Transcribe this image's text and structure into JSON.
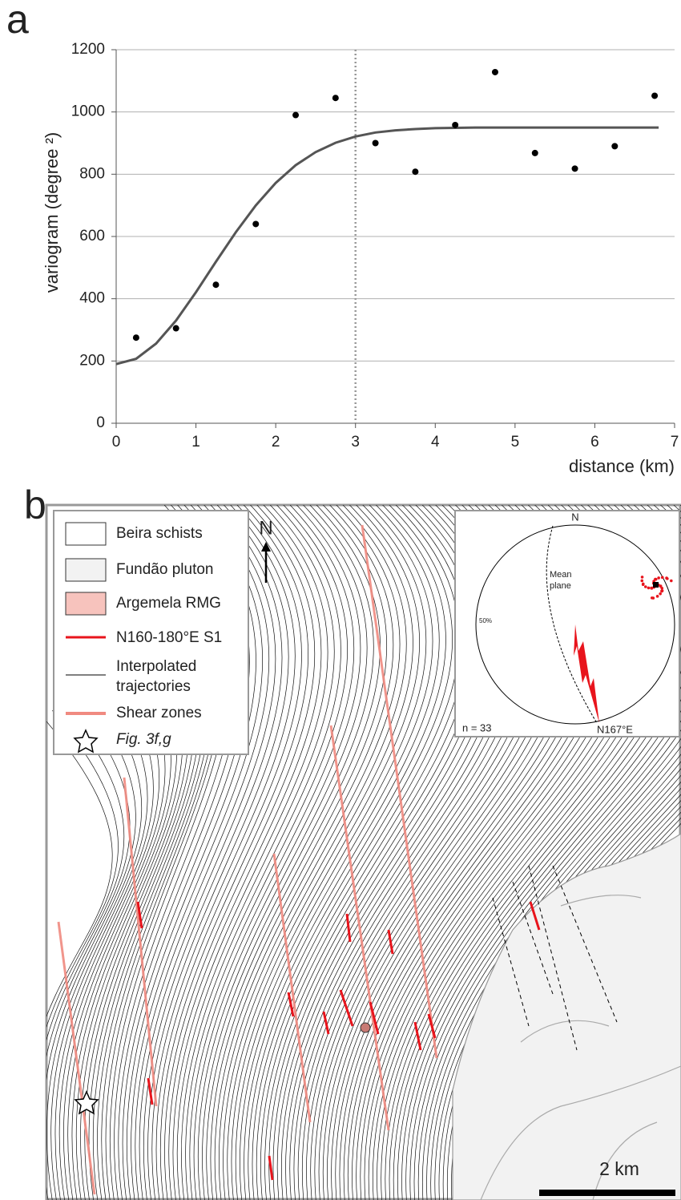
{
  "panel_a_label": "a",
  "chart_data": {
    "type": "scatter",
    "y_label": "variogram (degree ²)",
    "x_label": "distance (km)",
    "xlim": [
      0,
      7
    ],
    "xticks": [
      0,
      1,
      2,
      3,
      4,
      5,
      6,
      7
    ],
    "ylim": [
      0,
      1200
    ],
    "yticks": [
      0,
      200,
      400,
      600,
      800,
      1000,
      1200
    ],
    "grid": true,
    "reference_line_x": 3,
    "points": {
      "color": "#000000",
      "x": [
        0.25,
        0.75,
        1.25,
        1.75,
        2.25,
        2.75,
        3.25,
        3.75,
        4.25,
        4.75,
        5.25,
        5.75,
        6.25,
        6.75
      ],
      "values": [
        275,
        305,
        445,
        640,
        990,
        1045,
        900,
        808,
        958,
        1128,
        868,
        818,
        890,
        1052
      ]
    },
    "fit": {
      "color": "#555555",
      "x": [
        0,
        0.25,
        0.5,
        0.75,
        1,
        1.25,
        1.5,
        1.75,
        2,
        2.25,
        2.5,
        2.75,
        3,
        3.25,
        3.5,
        3.75,
        4,
        4.5,
        5,
        5.5,
        6,
        6.5,
        6.8
      ],
      "values": [
        190,
        207,
        256,
        330,
        421,
        519,
        614,
        700,
        772,
        829,
        871,
        901,
        921,
        934,
        941,
        945,
        948,
        950,
        950,
        950,
        950,
        950,
        950
      ]
    }
  },
  "panel_b_label": "b",
  "map": {
    "legend": [
      "Beira schists",
      "Fundão pluton",
      "Argemela RMG",
      "N160-180°E S1",
      [
        "Interpolated",
        "trajectories"
      ],
      "Shear zones",
      "Fig. 3f,g"
    ],
    "north": "N",
    "scale": "2 km",
    "inset": {
      "north": "N",
      "mean_plane": [
        "Mean",
        "plane"
      ],
      "percent": "50%",
      "n": "n = 33",
      "direction": "N167°E"
    }
  }
}
